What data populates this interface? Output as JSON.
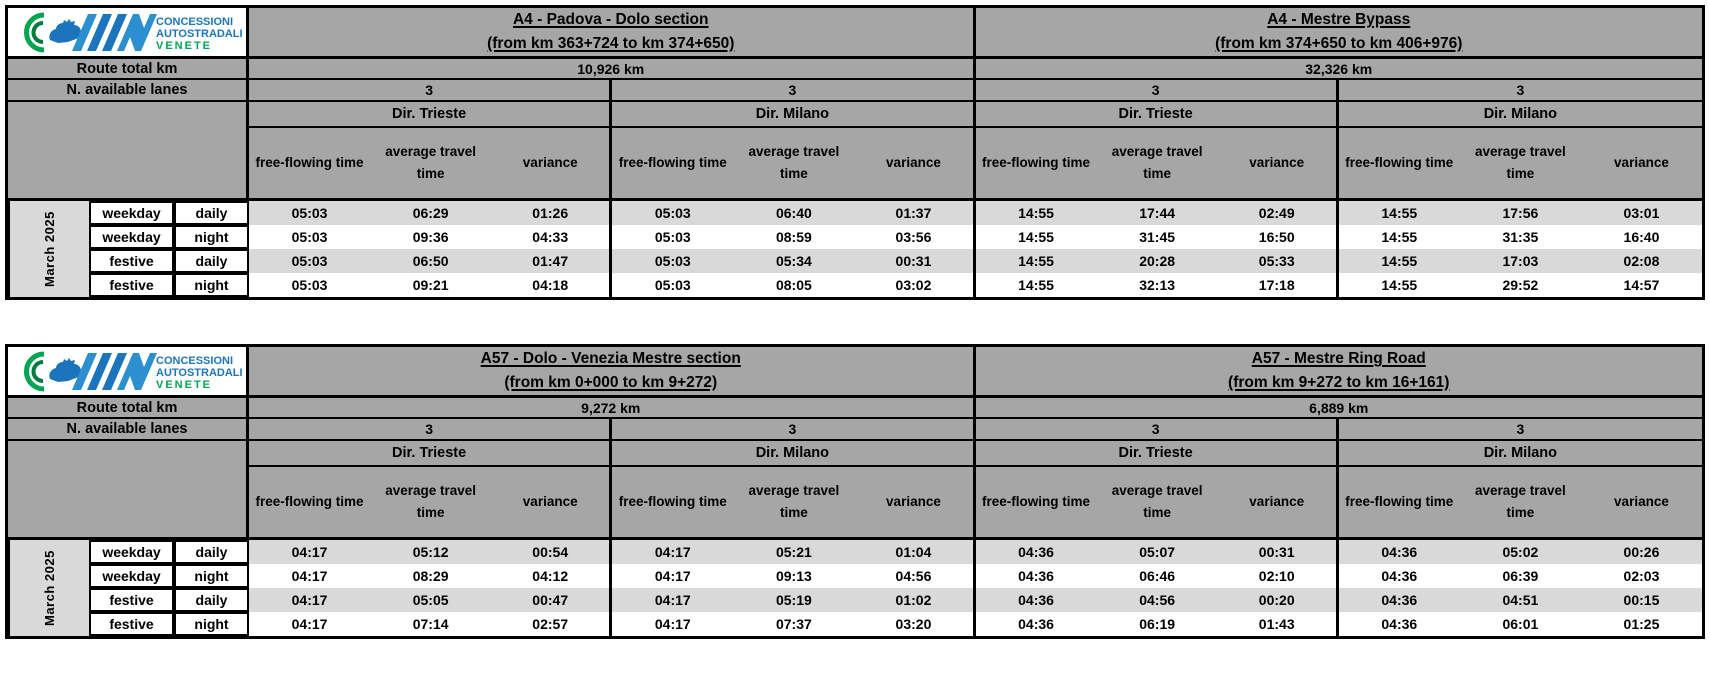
{
  "logo": {
    "line1": "CONCESSIONI",
    "line2": "AUTOSTRADALI",
    "line3": "VENETE"
  },
  "labels": {
    "route_total": "Route total km",
    "lanes": "N. available lanes",
    "col_free": "free-flowing time",
    "col_avg": "average travel time",
    "col_var": "variance",
    "month": "March 2025"
  },
  "colors": {
    "header_gray": "#a6a6a6",
    "row_light_gray": "#d9d9d9",
    "row_white": "#ffffff",
    "border_black": "#000000",
    "logo_blue": "#1c75bc",
    "logo_green": "#00a551"
  },
  "tables": [
    {
      "sections": [
        {
          "title": "A4 - Padova - Dolo section",
          "subtitle": "(from km 363+724 to km 374+650)",
          "route_km": "10,926 km",
          "lanes": [
            "3",
            "3"
          ],
          "directions": [
            "Dir. Trieste",
            "Dir. Milano"
          ]
        },
        {
          "title": "A4 - Mestre Bypass",
          "subtitle": "(from km 374+650 to km 406+976)",
          "route_km": "32,326 km",
          "lanes": [
            "3",
            "3"
          ],
          "directions": [
            "Dir. Trieste",
            "Dir. Milano"
          ]
        }
      ],
      "rows": [
        {
          "type": "weekday",
          "period": "daily",
          "values": [
            "05:03",
            "06:29",
            "01:26",
            "05:03",
            "06:40",
            "01:37",
            "14:55",
            "17:44",
            "02:49",
            "14:55",
            "17:56",
            "03:01"
          ]
        },
        {
          "type": "weekday",
          "period": "night",
          "values": [
            "05:03",
            "09:36",
            "04:33",
            "05:03",
            "08:59",
            "03:56",
            "14:55",
            "31:45",
            "16:50",
            "14:55",
            "31:35",
            "16:40"
          ]
        },
        {
          "type": "festive",
          "period": "daily",
          "values": [
            "05:03",
            "06:50",
            "01:47",
            "05:03",
            "05:34",
            "00:31",
            "14:55",
            "20:28",
            "05:33",
            "14:55",
            "17:03",
            "02:08"
          ]
        },
        {
          "type": "festive",
          "period": "night",
          "values": [
            "05:03",
            "09:21",
            "04:18",
            "05:03",
            "08:05",
            "03:02",
            "14:55",
            "32:13",
            "17:18",
            "14:55",
            "29:52",
            "14:57"
          ]
        }
      ]
    },
    {
      "sections": [
        {
          "title": "A57 - Dolo - Venezia Mestre section",
          "subtitle": "(from km 0+000 to km 9+272)",
          "route_km": "9,272 km",
          "lanes": [
            "3",
            "3"
          ],
          "directions": [
            "Dir. Trieste",
            "Dir. Milano"
          ]
        },
        {
          "title": "A57 - Mestre Ring Road",
          "subtitle": "(from km 9+272 to km 16+161)",
          "route_km": "6,889 km",
          "lanes": [
            "3",
            "3"
          ],
          "directions": [
            "Dir. Trieste",
            "Dir. Milano"
          ]
        }
      ],
      "rows": [
        {
          "type": "weekday",
          "period": "daily",
          "values": [
            "04:17",
            "05:12",
            "00:54",
            "04:17",
            "05:21",
            "01:04",
            "04:36",
            "05:07",
            "00:31",
            "04:36",
            "05:02",
            "00:26"
          ]
        },
        {
          "type": "weekday",
          "period": "night",
          "values": [
            "04:17",
            "08:29",
            "04:12",
            "04:17",
            "09:13",
            "04:56",
            "04:36",
            "06:46",
            "02:10",
            "04:36",
            "06:39",
            "02:03"
          ]
        },
        {
          "type": "festive",
          "period": "daily",
          "values": [
            "04:17",
            "05:05",
            "00:47",
            "04:17",
            "05:19",
            "01:02",
            "04:36",
            "04:56",
            "00:20",
            "04:36",
            "04:51",
            "00:15"
          ]
        },
        {
          "type": "festive",
          "period": "night",
          "values": [
            "04:17",
            "07:14",
            "02:57",
            "04:17",
            "07:37",
            "03:20",
            "04:36",
            "06:19",
            "01:43",
            "04:36",
            "06:01",
            "01:25"
          ]
        }
      ]
    }
  ]
}
